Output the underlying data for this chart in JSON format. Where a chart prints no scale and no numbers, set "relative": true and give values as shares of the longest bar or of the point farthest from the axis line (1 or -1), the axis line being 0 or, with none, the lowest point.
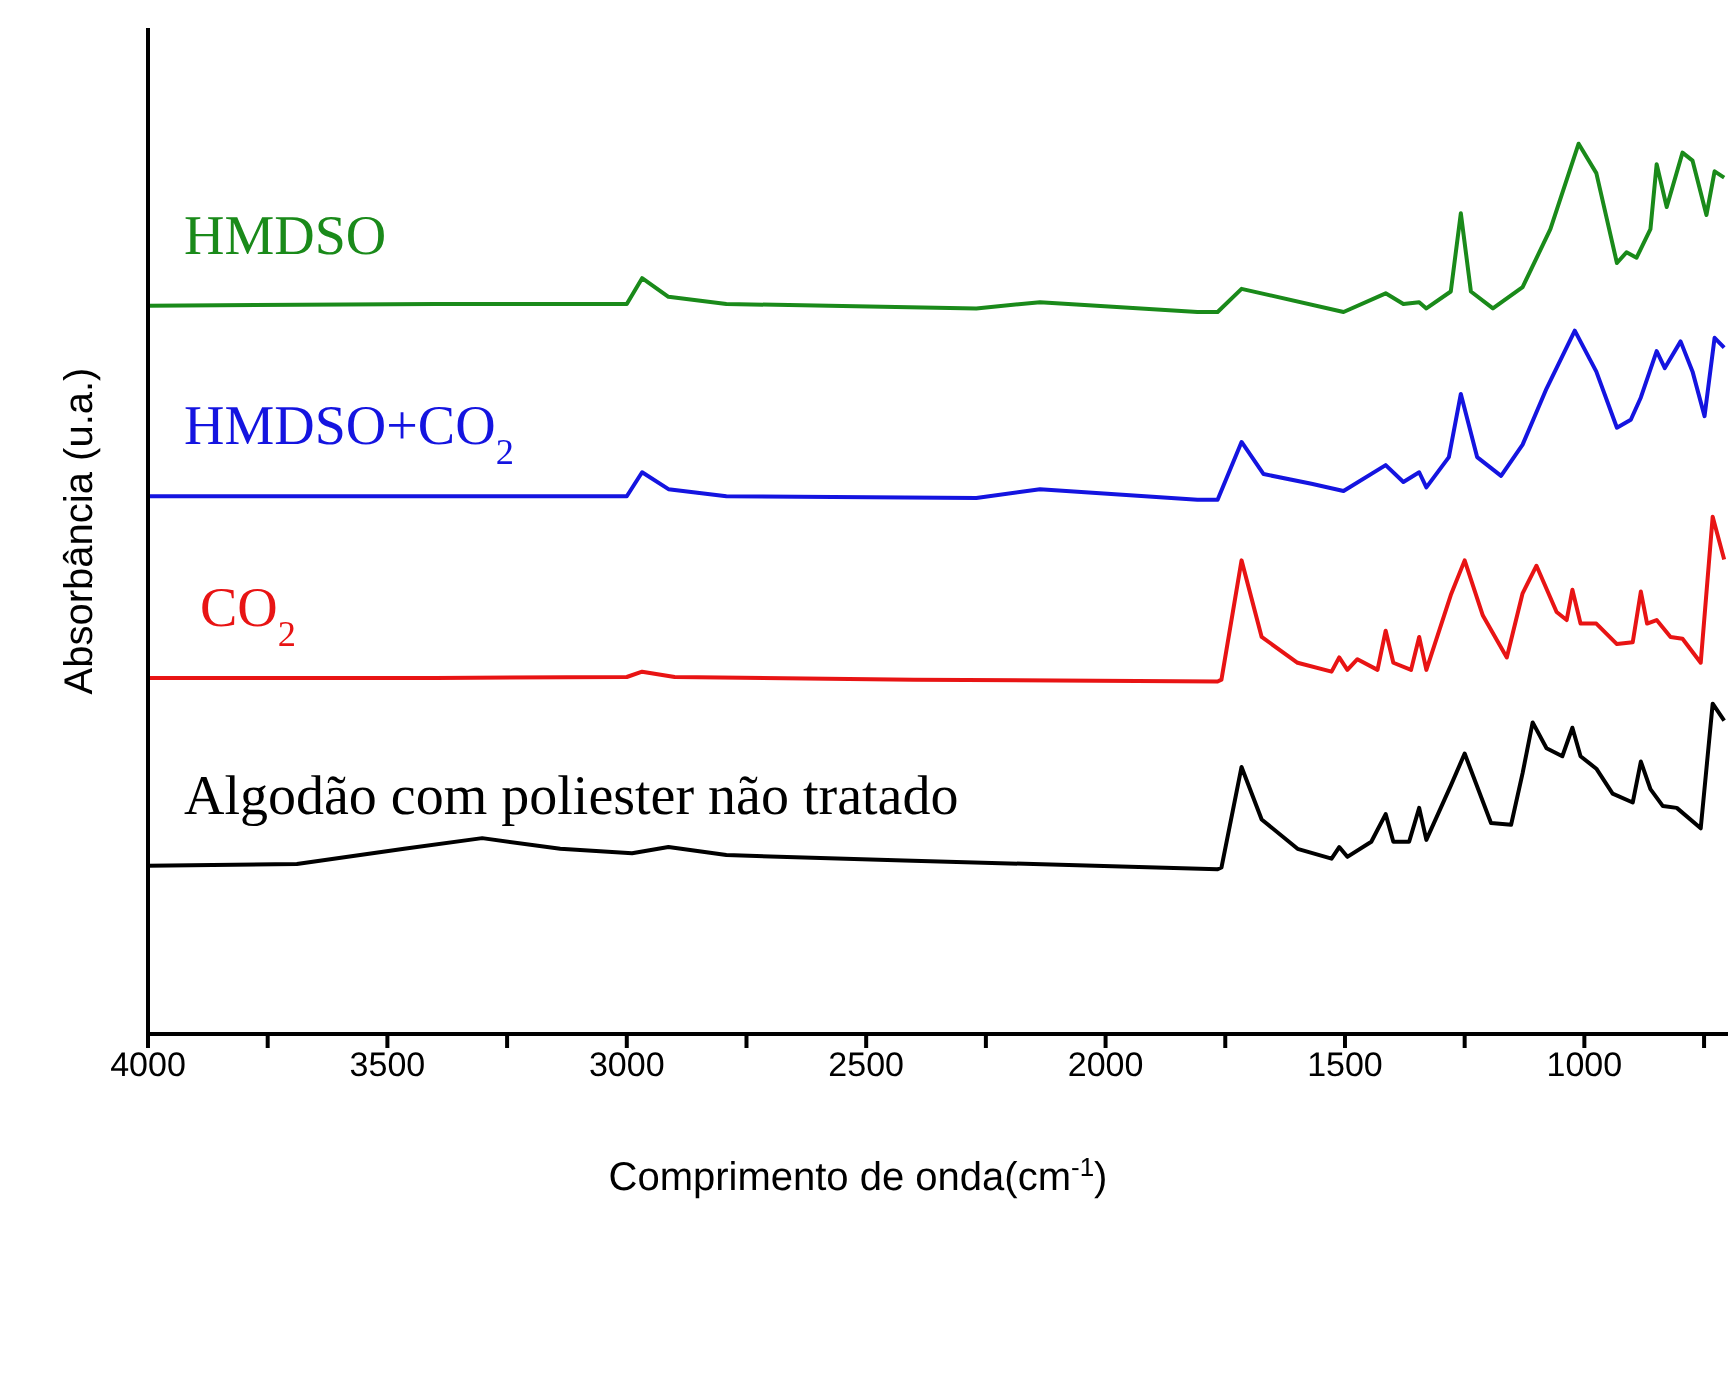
{
  "chart_data": {
    "type": "line",
    "relative": true,
    "xlabel": "Comprimento de onda(cm$^{-1}$)",
    "ylabel": "Absorbância (u.a.)",
    "xlim": [
      4000,
      700
    ],
    "xticks": [
      4000,
      {
        "value": 3750,
        "label": null
      },
      3500,
      {
        "value": 3250,
        "label": null
      },
      3000,
      {
        "value": 2750,
        "label": null
      },
      2500,
      {
        "value": 2250,
        "label": null
      },
      2000,
      {
        "value": 1750,
        "label": null
      },
      1500,
      {
        "value": 1250,
        "label": null
      },
      1000,
      {
        "value": 750,
        "label": null
      }
    ],
    "legend": false,
    "marker": "none",
    "line_style": "solid",
    "series": [
      {
        "name": "HMDSO",
        "color": "#1a8a1a",
        "x": [
          4000,
          3400,
          3000,
          2968,
          2913,
          2792,
          2270,
          2137,
          1808,
          1766,
          1716,
          1503,
          1415,
          1378,
          1345,
          1330,
          1279,
          1258,
          1237,
          1191,
          1129,
          1071,
          1012,
          975,
          932,
          912,
          891,
          862,
          849,
          828,
          795,
          774,
          745,
          728,
          708
        ],
        "values": [
          0.818,
          0.82,
          0.82,
          0.849,
          0.828,
          0.82,
          0.815,
          0.822,
          0.811,
          0.811,
          0.837,
          0.811,
          0.832,
          0.82,
          0.822,
          0.815,
          0.834,
          0.922,
          0.834,
          0.815,
          0.839,
          0.904,
          1.0,
          0.967,
          0.866,
          0.878,
          0.872,
          0.904,
          0.977,
          0.929,
          0.99,
          0.981,
          0.92,
          0.969,
          0.962
        ]
      },
      {
        "name": "HMDSO+CO$_{2}$",
        "color": "#1414e0",
        "x": [
          4000,
          3400,
          3000,
          2968,
          2913,
          2792,
          2270,
          2137,
          1808,
          1766,
          1716,
          1670,
          1570,
          1503,
          1415,
          1378,
          1345,
          1330,
          1283,
          1258,
          1224,
          1174,
          1129,
          1079,
          1020,
          975,
          932,
          903,
          882,
          849,
          832,
          799,
          774,
          749,
          728,
          708
        ],
        "values": [
          0.604,
          0.604,
          0.604,
          0.631,
          0.612,
          0.604,
          0.602,
          0.612,
          0.6,
          0.6,
          0.665,
          0.629,
          0.618,
          0.61,
          0.639,
          0.62,
          0.631,
          0.614,
          0.648,
          0.719,
          0.648,
          0.627,
          0.662,
          0.725,
          0.79,
          0.744,
          0.681,
          0.69,
          0.715,
          0.767,
          0.748,
          0.778,
          0.744,
          0.694,
          0.782,
          0.771
        ]
      },
      {
        "name": "CO$_{2}$",
        "color": "#e81414",
        "x": [
          4000,
          3400,
          3000,
          2968,
          2900,
          2400,
          1766,
          1758,
          1716,
          1674,
          1599,
          1528,
          1512,
          1495,
          1474,
          1432,
          1415,
          1399,
          1362,
          1345,
          1330,
          1279,
          1250,
          1212,
          1162,
          1129,
          1100,
          1058,
          1037,
          1025,
          1008,
          975,
          932,
          899,
          882,
          869,
          849,
          820,
          795,
          757,
          732,
          708
        ],
        "values": [
          0.4,
          0.4,
          0.401,
          0.407,
          0.401,
          0.398,
          0.396,
          0.398,
          0.532,
          0.446,
          0.417,
          0.407,
          0.423,
          0.409,
          0.421,
          0.409,
          0.453,
          0.417,
          0.409,
          0.446,
          0.409,
          0.493,
          0.532,
          0.47,
          0.423,
          0.495,
          0.526,
          0.474,
          0.465,
          0.499,
          0.461,
          0.461,
          0.438,
          0.44,
          0.497,
          0.461,
          0.465,
          0.446,
          0.444,
          0.417,
          0.581,
          0.533
        ]
      },
      {
        "name": "Algodão com poliester não tratado",
        "color": "#000000",
        "x": [
          4000,
          3689,
          3465,
          3302,
          3139,
          2989,
          2913,
          2792,
          2421,
          1766,
          1758,
          1716,
          1674,
          1599,
          1528,
          1512,
          1495,
          1445,
          1415,
          1399,
          1366,
          1345,
          1330,
          1279,
          1250,
          1195,
          1153,
          1129,
          1108,
          1079,
          1046,
          1025,
          1008,
          975,
          941,
          899,
          882,
          862,
          836,
          807,
          757,
          732,
          708
        ],
        "values": [
          0.189,
          0.191,
          0.208,
          0.22,
          0.208,
          0.203,
          0.21,
          0.201,
          0.195,
          0.185,
          0.187,
          0.3,
          0.241,
          0.208,
          0.197,
          0.21,
          0.199,
          0.216,
          0.247,
          0.216,
          0.216,
          0.254,
          0.218,
          0.279,
          0.315,
          0.237,
          0.235,
          0.293,
          0.35,
          0.321,
          0.312,
          0.344,
          0.312,
          0.298,
          0.27,
          0.26,
          0.306,
          0.275,
          0.256,
          0.254,
          0.231,
          0.371,
          0.352
        ]
      }
    ]
  }
}
